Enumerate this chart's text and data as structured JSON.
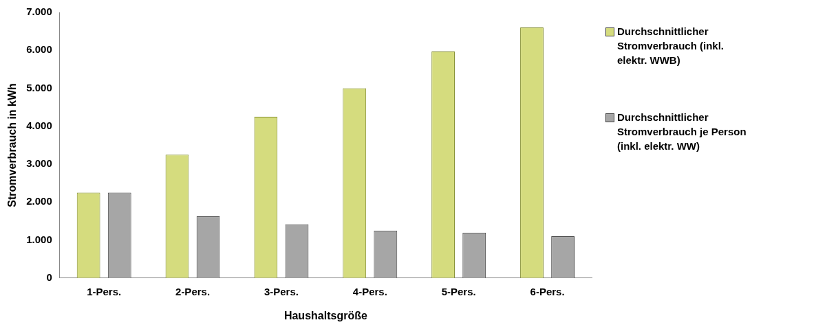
{
  "chart_data": {
    "type": "bar",
    "xlabel": "Haushaltsgröße",
    "ylabel": "Stromverbrauch in kWh",
    "categories": [
      "1-Pers.",
      "2-Pers.",
      "3-Pers.",
      "4-Pers.",
      "5-Pers.",
      "6-Pers."
    ],
    "series": [
      {
        "name": "Durchschnittlicher Stromverbrauch (inkl. elektr. WWB)",
        "color": "#d5dc7e",
        "values": [
          2250,
          3250,
          4250,
          5000,
          5970,
          6600
        ]
      },
      {
        "name": "Durchschnittlicher Stromverbrauch je Person (inkl. elektr. WW)",
        "color": "#a6a6a6",
        "values": [
          2250,
          1625,
          1417,
          1250,
          1194,
          1100
        ]
      }
    ],
    "ylim": [
      0,
      7000
    ],
    "yticks": [
      0,
      {
        "value": 1000,
        "label": "1.000"
      },
      {
        "value": 2000,
        "label": "2.000"
      },
      {
        "value": 3000,
        "label": "3.000"
      },
      {
        "value": 4000,
        "label": "4.000"
      },
      {
        "value": 5000,
        "label": "5.000"
      },
      {
        "value": 6000,
        "label": "6.000"
      },
      {
        "value": 7000,
        "label": "7.000"
      }
    ],
    "grid": false,
    "legend": "right"
  }
}
